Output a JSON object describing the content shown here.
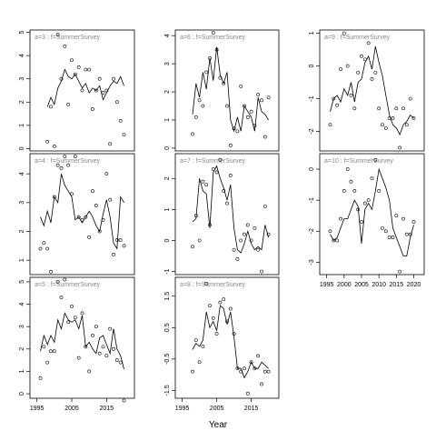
{
  "figure": {
    "xlabel": "Year"
  },
  "chart_data": [
    {
      "type": "line",
      "strip_label": "a=3  :  f=SummerSurvey",
      "xlim": [
        1993,
        2023
      ],
      "ylim": [
        -0.1,
        5.1
      ],
      "yticks": [
        0,
        1,
        2,
        3,
        4,
        5
      ],
      "xticks": [],
      "line": {
        "x": [
          1998,
          1999,
          2000,
          2001,
          2002,
          2003,
          2004,
          2005,
          2006,
          2007,
          2008,
          2009,
          2010,
          2011,
          2012,
          2013,
          2014,
          2015,
          2016,
          2017,
          2018,
          2019,
          2020
        ],
        "y": [
          1.8,
          2.2,
          1.9,
          2.6,
          2.9,
          3.4,
          3.1,
          3.0,
          3.2,
          2.9,
          2.6,
          2.8,
          2.4,
          2.6,
          2.5,
          2.7,
          2.1,
          2.4,
          2.7,
          2.9,
          2.8,
          3.1,
          2.7
        ]
      },
      "points": {
        "x": [
          1998,
          1999,
          2000,
          2001,
          2002,
          2003,
          2004,
          2005,
          2006,
          2007,
          2008,
          2009,
          2010,
          2011,
          2012,
          2013,
          2014,
          2015,
          2016,
          2017,
          2018,
          2019,
          2020
        ],
        "y": [
          0.3,
          1.8,
          0.1,
          4.9,
          3.0,
          4.4,
          1.9,
          3.8,
          3.2,
          3.5,
          2.5,
          3.4,
          3.4,
          1.7,
          2.5,
          3.0,
          2.4,
          2.5,
          0.2,
          3.0,
          2.0,
          1.2,
          0.6
        ]
      }
    },
    {
      "type": "line",
      "strip_label": "a=6  :  f=SummerSurvey",
      "xlim": [
        1993,
        2023
      ],
      "ylim": [
        -0.1,
        4.2
      ],
      "yticks": [
        0,
        1,
        2,
        3,
        4
      ],
      "xticks": [],
      "line": {
        "x": [
          1998,
          1999,
          2000,
          2001,
          2002,
          2003,
          2004,
          2005,
          2006,
          2007,
          2008,
          2009,
          2010,
          2011,
          2012,
          2013,
          2014,
          2015,
          2016,
          2017,
          2018,
          2019,
          2020
        ],
        "y": [
          1.2,
          2.3,
          1.8,
          2.7,
          2.1,
          3.2,
          2.4,
          3.6,
          2.6,
          2.3,
          2.7,
          1.0,
          0.6,
          1.1,
          0.6,
          1.5,
          1.3,
          1.1,
          0.6,
          1.8,
          1.3,
          1.2,
          1.0
        ]
      },
      "points": {
        "x": [
          1998,
          1999,
          2000,
          2001,
          2002,
          2003,
          2004,
          2005,
          2006,
          2007,
          2008,
          2009,
          2010,
          2011,
          2012,
          2013,
          2014,
          2015,
          2016,
          2017,
          2018,
          2019,
          2020
        ],
        "y": [
          0.5,
          1.1,
          1.7,
          1.5,
          2.7,
          3.2,
          4.1,
          3.5,
          2.5,
          2.3,
          1.5,
          0.1,
          0.7,
          0.6,
          2.2,
          1.5,
          1.1,
          1.3,
          0.8,
          1.9,
          1.7,
          0.4,
          1.8
        ]
      }
    },
    {
      "type": "line",
      "strip_label": "a=9  :  f=SummerSurvey",
      "xlim": [
        1993,
        2023
      ],
      "ylim": [
        -2.6,
        1.1
      ],
      "yticks": [
        -2,
        -1,
        0,
        1
      ],
      "xticks": [],
      "line": {
        "x": [
          1996,
          1997,
          1998,
          1999,
          2000,
          2001,
          2002,
          2003,
          2004,
          2005,
          2006,
          2007,
          2008,
          2009,
          2010,
          2011,
          2012,
          2013,
          2014,
          2015,
          2016,
          2017,
          2018,
          2019,
          2020
        ],
        "y": [
          -1.4,
          -1.0,
          -0.9,
          -1.1,
          -0.7,
          -0.9,
          -0.5,
          -1.1,
          -0.5,
          -0.4,
          0.1,
          0.3,
          -0.1,
          0.6,
          0.1,
          -0.3,
          -0.9,
          -1.5,
          -1.8,
          -1.9,
          -2.1,
          -1.8,
          -1.7,
          -1.5,
          -1.6
        ]
      },
      "points": {
        "x": [
          1996,
          1997,
          1998,
          1999,
          2000,
          2001,
          2002,
          2003,
          2004,
          2005,
          2006,
          2007,
          2008,
          2009,
          2010,
          2011,
          2012,
          2013,
          2014,
          2015,
          2016,
          2017,
          2018,
          2019,
          2020
        ],
        "y": [
          -1.8,
          -1.0,
          -1.2,
          -0.1,
          1.0,
          0.0,
          -0.9,
          -1.3,
          -0.2,
          0.3,
          0.2,
          0.7,
          -0.4,
          -0.2,
          -1.3,
          -1.8,
          -1.9,
          -1.6,
          -1.6,
          -1.3,
          -2.5,
          -1.3,
          -1.8,
          -1.0,
          -1.6
        ]
      }
    },
    {
      "type": "line",
      "strip_label": "a=4  :  f=SummerSurvey",
      "xlim": [
        1993,
        2023
      ],
      "ylim": [
        0.5,
        4.7
      ],
      "yticks": [
        1,
        2,
        3,
        4
      ],
      "xticks": [],
      "line": {
        "x": [
          1996,
          1997,
          1998,
          1999,
          2000,
          2001,
          2002,
          2003,
          2004,
          2005,
          2006,
          2007,
          2008,
          2009,
          2010,
          2011,
          2012,
          2013,
          2014,
          2015,
          2016,
          2017,
          2018,
          2019,
          2020
        ],
        "y": [
          2.5,
          2.2,
          2.7,
          2.3,
          3.2,
          3.0,
          4.0,
          3.6,
          3.4,
          3.2,
          2.4,
          2.5,
          2.3,
          2.5,
          2.7,
          2.5,
          2.2,
          2.0,
          2.6,
          3.1,
          2.5,
          1.6,
          1.4,
          3.2,
          3.0
        ]
      },
      "points": {
        "x": [
          1996,
          1997,
          1998,
          1999,
          2000,
          2001,
          2002,
          2003,
          2004,
          2005,
          2006,
          2007,
          2008,
          2009,
          2010,
          2011,
          2012,
          2013,
          2014,
          2015,
          2016,
          2017,
          2018,
          2019,
          2020
        ],
        "y": [
          1.4,
          1.6,
          1.4,
          0.6,
          3.2,
          4.3,
          4.2,
          4.6,
          4.3,
          3.3,
          4.6,
          2.5,
          2.4,
          2.5,
          1.8,
          3.4,
          2.9,
          2.0,
          2.4,
          4.0,
          3.1,
          1.2,
          1.7,
          1.7,
          1.5
        ]
      }
    },
    {
      "type": "line",
      "strip_label": "a=7  :  f=SummerSurvey",
      "xlim": [
        1993,
        2023
      ],
      "ylim": [
        -1.1,
        2.8
      ],
      "yticks": [
        -1,
        0,
        1,
        2
      ],
      "xticks": [],
      "line": {
        "x": [
          1998,
          1999,
          2000,
          2001,
          2002,
          2003,
          2004,
          2005,
          2006,
          2007,
          2008,
          2009,
          2010,
          2011,
          2012,
          2013,
          2014,
          2015,
          2016,
          2017,
          2018,
          2019,
          2020
        ],
        "y": [
          0.6,
          0.7,
          2.0,
          1.6,
          1.5,
          0.4,
          2.2,
          2.4,
          2.0,
          1.7,
          1.3,
          1.8,
          0.4,
          -0.3,
          -0.4,
          -0.1,
          0.3,
          -0.1,
          -0.3,
          -0.2,
          -0.3,
          0.5,
          0.1
        ]
      },
      "points": {
        "x": [
          1998,
          1999,
          2000,
          2001,
          2002,
          2003,
          2004,
          2005,
          2006,
          2007,
          2008,
          2009,
          2010,
          2011,
          2012,
          2013,
          2014,
          2015,
          2016,
          2017,
          2018,
          2019,
          2020
        ],
        "y": [
          -0.2,
          0.8,
          0.0,
          1.9,
          1.8,
          0.5,
          2.3,
          2.2,
          2.6,
          1.6,
          1.2,
          2.1,
          -0.3,
          -0.6,
          0.0,
          0.2,
          0.5,
          0.0,
          0.4,
          -0.3,
          -1.0,
          1.1,
          0.2
        ]
      }
    },
    {
      "type": "line",
      "strip_label": "a=10  :  f=SummerSurvey",
      "xlim": [
        1993,
        2023
      ],
      "ylim": [
        -3.4,
        0.5
      ],
      "yticks": [
        -3,
        -2,
        -1,
        0
      ],
      "xticks": [
        1995,
        2000,
        2005,
        2010,
        2015,
        2020
      ],
      "line": {
        "x": [
          1996,
          1997,
          1998,
          1999,
          2000,
          2001,
          2002,
          2003,
          2004,
          2005,
          2006,
          2007,
          2008,
          2009,
          2010,
          2011,
          2012,
          2013,
          2014,
          2015,
          2016,
          2017,
          2018,
          2019,
          2020
        ],
        "y": [
          -2.1,
          -2.3,
          -2.2,
          -1.9,
          -1.6,
          -1.6,
          -1.3,
          -1.0,
          -1.2,
          -2.4,
          -1.3,
          -1.1,
          -1.3,
          -0.7,
          0.0,
          -0.3,
          -0.6,
          -1.0,
          -1.9,
          -2.2,
          -2.5,
          -2.8,
          -2.8,
          -2.2,
          -1.8
        ]
      },
      "points": {
        "x": [
          1996,
          1997,
          1998,
          1999,
          2000,
          2001,
          2002,
          2003,
          2004,
          2005,
          2006,
          2007,
          2008,
          2009,
          2010,
          2011,
          2012,
          2013,
          2014,
          2015,
          2016,
          2017,
          2018,
          2019,
          2020
        ],
        "y": [
          -2.0,
          -2.3,
          -2.3,
          -1.6,
          -0.7,
          0.0,
          -0.4,
          -0.7,
          -1.3,
          -1.7,
          -1.1,
          -1.0,
          -0.3,
          0.3,
          -0.7,
          -1.9,
          -2.0,
          -2.2,
          -2.2,
          -1.5,
          -3.3,
          -1.6,
          -2.1,
          -2.1,
          -1.7
        ]
      }
    },
    {
      "type": "line",
      "strip_label": "a=5  :  f=SummerSurvey",
      "xlim": [
        1993,
        2023
      ],
      "ylim": [
        -0.2,
        5.2
      ],
      "yticks": [
        0,
        1,
        2,
        3,
        4,
        5
      ],
      "xticks": [
        1995,
        2005,
        2015
      ],
      "line": {
        "x": [
          1996,
          1997,
          1998,
          1999,
          2000,
          2001,
          2002,
          2003,
          2004,
          2005,
          2006,
          2007,
          2008,
          2009,
          2010,
          2011,
          2012,
          2013,
          2014,
          2015,
          2016,
          2017,
          2018,
          2019,
          2020
        ],
        "y": [
          1.9,
          2.6,
          2.2,
          2.6,
          2.3,
          3.3,
          2.9,
          3.6,
          3.3,
          3.2,
          3.3,
          2.9,
          3.5,
          2.1,
          2.3,
          2.0,
          1.8,
          2.5,
          2.6,
          2.2,
          1.8,
          2.9,
          2.0,
          1.7,
          1.1
        ]
      },
      "points": {
        "x": [
          1996,
          1997,
          1998,
          1999,
          2000,
          2001,
          2002,
          2003,
          2004,
          2005,
          2006,
          2007,
          2008,
          2009,
          2010,
          2011,
          2012,
          2013,
          2014,
          2015,
          2016,
          2017,
          2018,
          2019,
          2020
        ],
        "y": [
          0.7,
          2.1,
          1.4,
          1.9,
          1.9,
          5.0,
          4.3,
          5.1,
          3.2,
          3.9,
          3.4,
          1.6,
          3.6,
          2.1,
          1.0,
          2.6,
          3.0,
          1.8,
          2.1,
          1.7,
          2.9,
          2.0,
          1.5,
          1.4,
          -0.3
        ]
      }
    },
    {
      "type": "line",
      "strip_label": "a=8  :  f=SummerSurvey",
      "xlim": [
        1993,
        2023
      ],
      "ylim": [
        -1.75,
        2.1
      ],
      "yticks": [
        -1.5,
        -0.5,
        0.5,
        1.5
      ],
      "xticks": [
        1995,
        2005,
        2015
      ],
      "line": {
        "x": [
          1998,
          1999,
          2000,
          2001,
          2002,
          2003,
          2004,
          2005,
          2006,
          2007,
          2008,
          2009,
          2010,
          2011,
          2012,
          2013,
          2014,
          2015,
          2016,
          2017,
          2018,
          2019,
          2020
        ],
        "y": [
          -0.2,
          0.0,
          -0.1,
          0.1,
          1.0,
          0.5,
          0.7,
          0.4,
          1.2,
          1.1,
          0.6,
          1.0,
          0.2,
          -0.8,
          -0.8,
          -1.1,
          -0.9,
          -0.6,
          -0.8,
          -0.8,
          -0.6,
          -0.7,
          -0.8
        ]
      },
      "points": {
        "x": [
          1998,
          1999,
          2000,
          2001,
          2002,
          2003,
          2004,
          2005,
          2006,
          2007,
          2008,
          2009,
          2010,
          2011,
          2012,
          2013,
          2014,
          2015,
          2016,
          2017,
          2018,
          2019,
          2020
        ],
        "y": [
          -0.9,
          0.1,
          -0.6,
          -0.1,
          1.9,
          1.2,
          0.8,
          0.3,
          1.3,
          1.4,
          0.7,
          1.1,
          0.3,
          -0.8,
          -0.9,
          -0.8,
          -1.6,
          -0.6,
          -0.8,
          -0.4,
          -1.3,
          -0.9,
          -0.9
        ]
      }
    }
  ]
}
